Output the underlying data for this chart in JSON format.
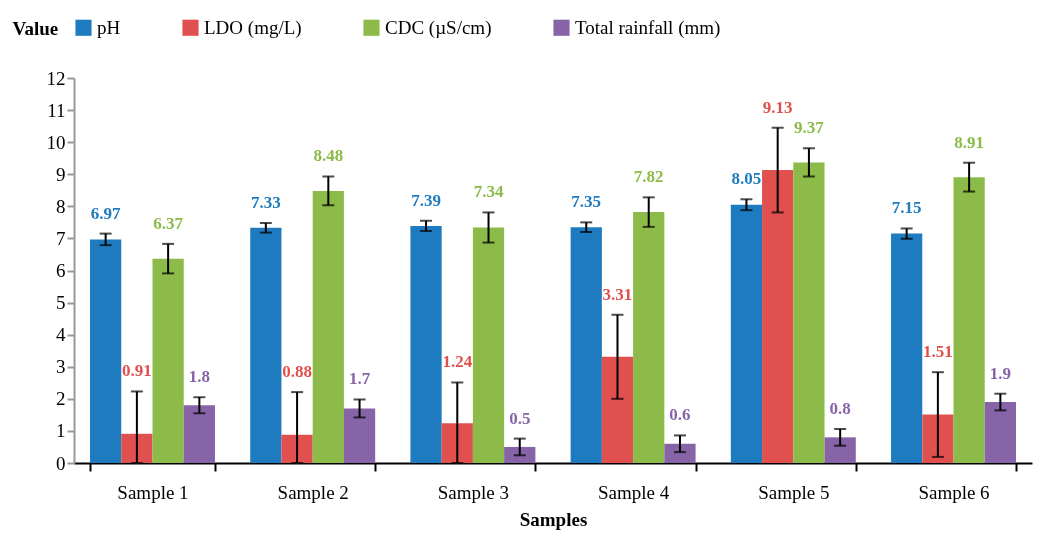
{
  "chart_data": {
    "type": "bar",
    "ylabel": "Value",
    "xlabel": "Samples",
    "categories": [
      "Sample 1",
      "Sample 2",
      "Sample 3",
      "Sample 4",
      "Sample 5",
      "Sample 6"
    ],
    "series": [
      {
        "name": "pH",
        "color": "#1f7bbf",
        "values": [
          6.97,
          7.33,
          7.39,
          7.35,
          8.05,
          7.15
        ],
        "errors": [
          0.18,
          0.15,
          0.16,
          0.15,
          0.17,
          0.16
        ]
      },
      {
        "name": "LDO (mg/L)",
        "color": "#e0504e",
        "values": [
          0.91,
          0.88,
          1.24,
          3.31,
          9.13,
          1.51
        ],
        "errors": [
          [
            0,
            2.23
          ],
          [
            0,
            2.21
          ],
          [
            0,
            2.51
          ],
          1.31,
          1.32,
          1.32
        ]
      },
      {
        "name": "CDC (µS/cm)",
        "color": "#8cbb4a",
        "values": [
          6.37,
          8.48,
          7.34,
          7.82,
          9.37,
          8.91
        ],
        "errors": [
          0.46,
          0.45,
          0.47,
          0.46,
          0.44,
          0.45
        ]
      },
      {
        "name": "Total rainfall (mm)",
        "color": "#8764a8",
        "values": [
          1.8,
          1.7,
          0.5,
          0.6,
          0.8,
          1.9
        ],
        "errors": [
          0.25,
          0.28,
          0.26,
          0.26,
          0.26,
          0.26
        ]
      }
    ],
    "ylim": [
      0,
      12
    ],
    "yticks": [
      0,
      1,
      2,
      3,
      4,
      5,
      6,
      7,
      8,
      9,
      10,
      11,
      12
    ],
    "data_labels": true,
    "legend": "top"
  }
}
